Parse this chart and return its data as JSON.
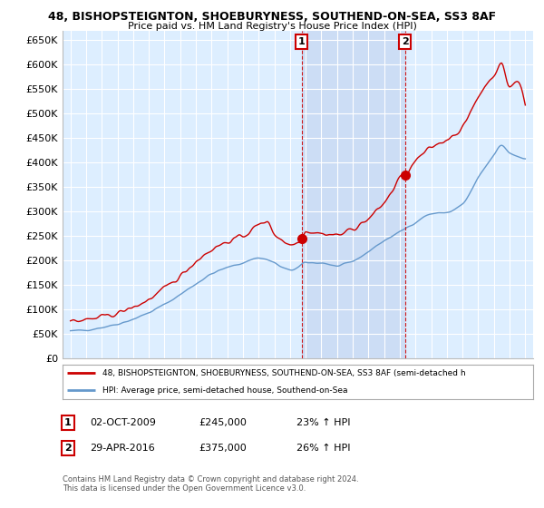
{
  "title": "48, BISHOPSTEIGNTON, SHOEBURYNESS, SOUTHEND-ON-SEA, SS3 8AF",
  "subtitle": "Price paid vs. HM Land Registry's House Price Index (HPI)",
  "legend_line1": "48, BISHOPSTEIGNTON, SHOEBURYNESS, SOUTHEND-ON-SEA, SS3 8AF (semi-detached h",
  "legend_line2": "HPI: Average price, semi-detached house, Southend-on-Sea",
  "annotation1_box": "1",
  "annotation1_date": "02-OCT-2009",
  "annotation1_price": "£245,000",
  "annotation1_pct": "23% ↑ HPI",
  "annotation2_box": "2",
  "annotation2_date": "29-APR-2016",
  "annotation2_price": "£375,000",
  "annotation2_pct": "26% ↑ HPI",
  "footer1": "Contains HM Land Registry data © Crown copyright and database right 2024.",
  "footer2": "This data is licensed under the Open Government Licence v3.0.",
  "red_color": "#cc0000",
  "blue_color": "#6699cc",
  "bg_color": "#ddeeff",
  "shade_color": "#ccddf5",
  "grid_color": "#ffffff",
  "fig_bg": "#ffffff",
  "ylim": [
    0,
    670000
  ],
  "yticks": [
    0,
    50000,
    100000,
    150000,
    200000,
    250000,
    300000,
    350000,
    400000,
    450000,
    500000,
    550000,
    600000,
    650000
  ],
  "ytick_labels": [
    "£0",
    "£50K",
    "£100K",
    "£150K",
    "£200K",
    "£250K",
    "£300K",
    "£350K",
    "£400K",
    "£450K",
    "£500K",
    "£550K",
    "£600K",
    "£650K"
  ],
  "ann1_x": 2009.75,
  "ann1_y": 245000,
  "ann2_x": 2016.33,
  "ann2_y": 375000,
  "xmin": 1994.5,
  "xmax": 2024.5
}
